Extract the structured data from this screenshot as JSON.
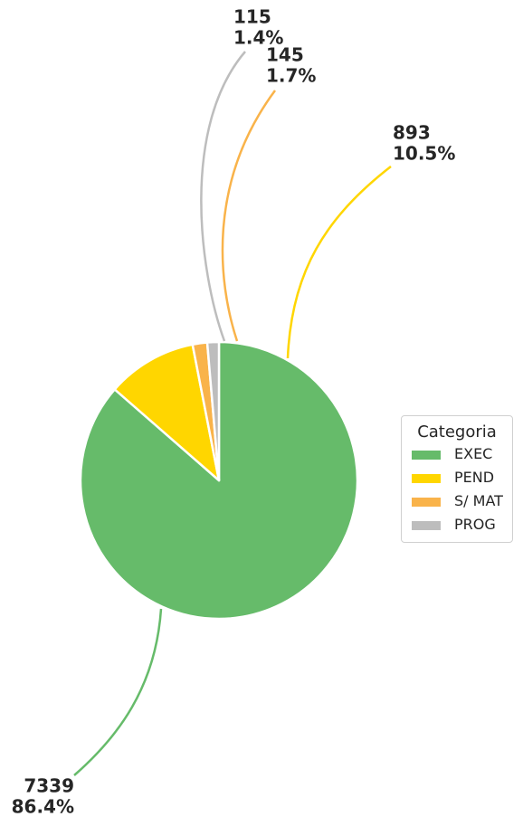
{
  "chart_data": {
    "type": "pie",
    "title": "",
    "legend_title": "Categoria",
    "legend_position": "right",
    "start_angle_deg": 90,
    "direction": "clockwise",
    "slices": [
      {
        "name": "EXEC",
        "value": 7339,
        "percent_label": "86.4%",
        "color": "#66bb6a"
      },
      {
        "name": "PEND",
        "value": 893,
        "percent_label": "10.5%",
        "color": "#ffd600"
      },
      {
        "name": "S/ MAT",
        "value": 145,
        "percent_label": "1.7%",
        "color": "#f9b34a"
      },
      {
        "name": "PROG",
        "value": 115,
        "percent_label": "1.4%",
        "color": "#bdbdbd"
      }
    ]
  }
}
